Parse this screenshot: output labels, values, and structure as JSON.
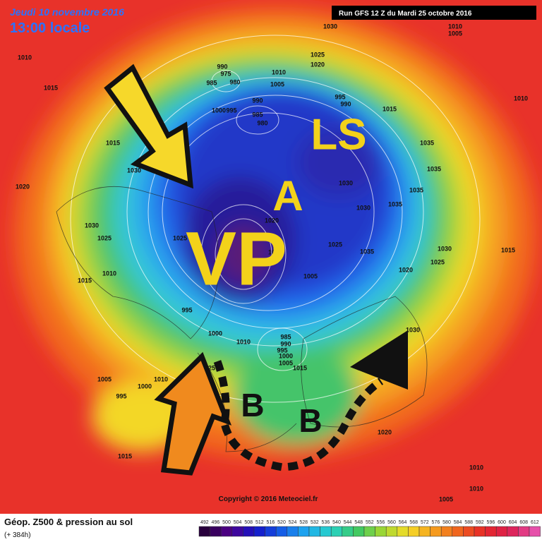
{
  "header": {
    "date": "Jeudi 10 novembre 2016",
    "time": "13:00 locale",
    "run": "Run GFS 12 Z du Mardi 25 octobre 2016"
  },
  "annotations": {
    "ls": "LS",
    "a": "A",
    "vp": "VP",
    "b1": "B",
    "b2": "B"
  },
  "copyright": "Copyright © 2016 Meteociel.fr",
  "legend": {
    "title": "Géop. Z500 & pression au sol",
    "lead": "(+ 384h)",
    "scale": [
      492,
      496,
      500,
      504,
      508,
      512,
      516,
      520,
      524,
      528,
      532,
      536,
      540,
      544,
      548,
      552,
      556,
      560,
      564,
      568,
      572,
      576,
      580,
      584,
      588,
      592,
      596,
      600,
      604,
      608,
      612
    ]
  },
  "pressure_labels": [
    "1030",
    "1010",
    "1005",
    "1010",
    "1015",
    "1025",
    "1020",
    "990",
    "975",
    "985",
    "980",
    "1010",
    "1005",
    "990",
    "985",
    "980",
    "1000",
    "995",
    "995",
    "990",
    "1015",
    "1015",
    "1030",
    "1020",
    "1035",
    "1035",
    "1030",
    "1030",
    "1035",
    "1035",
    "1030",
    "1025",
    "1025",
    "1025",
    "1035",
    "1030",
    "1015",
    "1020",
    "1015",
    "1010",
    "1015",
    "1005",
    "1020",
    "1025",
    "995",
    "1000",
    "1010",
    "985",
    "990",
    "995",
    "1000",
    "1005",
    "1015",
    "1030",
    "1005",
    "1000",
    "1010",
    "995",
    "1025",
    "1020",
    "1015",
    "1010",
    "1010",
    "1005",
    "1010"
  ]
}
